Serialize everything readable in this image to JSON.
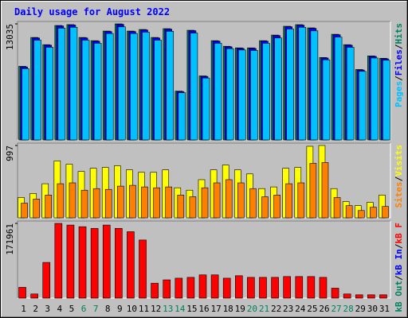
{
  "chart_data": {
    "type": "bar",
    "title": "Daily usage for August 2022",
    "categories": [
      "1",
      "2",
      "3",
      "4",
      "5",
      "6",
      "7",
      "8",
      "9",
      "10",
      "11",
      "12",
      "13",
      "14",
      "15",
      "16",
      "17",
      "18",
      "19",
      "20",
      "21",
      "22",
      "23",
      "24",
      "25",
      "26",
      "27",
      "28",
      "29",
      "30",
      "31"
    ],
    "weekend_indices": [
      5,
      6,
      12,
      13,
      19,
      20,
      26,
      27
    ],
    "weekend_color": "#00805c",
    "legend_separator": "/",
    "panels": [
      {
        "ylim": [
          0,
          13035
        ],
        "yticks": [
          13035
        ],
        "series": [
          {
            "name": "Hits",
            "color": "#00805c",
            "values": [
              8270,
              11507,
              10698,
              12855,
              12950,
              11507,
              11147,
              12226,
              13035,
              12226,
              12406,
              11507,
              12496,
              5484,
              12316,
              7192,
              11147,
              10518,
              10338,
              10338,
              11147,
              11776,
              12765,
              12945,
              12586,
              9259,
              11866,
              10698,
              7911,
              9439,
              9169
            ]
          },
          {
            "name": "Files",
            "color": "#0000ff",
            "values": [
              8200,
              11450,
              10640,
              12800,
              12900,
              11450,
              11090,
              12170,
              12980,
              12170,
              12350,
              11450,
              12440,
              5430,
              12260,
              7130,
              11090,
              10460,
              10280,
              10280,
              11090,
              11720,
              12710,
              12890,
              12530,
              9200,
              11810,
              10640,
              7850,
              9380,
              9110
            ]
          },
          {
            "name": "Pages",
            "color": "#00c0ff",
            "values": [
              8000,
              11200,
              10400,
              12550,
              12650,
              11200,
              10850,
              11950,
              12700,
              11950,
              12100,
              11200,
              12200,
              5300,
              12000,
              6950,
              10850,
              10250,
              10100,
              10050,
              10850,
              11450,
              12450,
              12650,
              12250,
              9000,
              11550,
              10400,
              7700,
              9200,
              8950
            ]
          }
        ]
      },
      {
        "ylim": [
          0,
          997
        ],
        "yticks": [
          997
        ],
        "series": [
          {
            "name": "Visits",
            "color": "#ffff00",
            "values": [
              280,
              336,
              470,
              784,
              739,
              639,
              683,
              694,
              717,
              661,
              627,
              627,
              661,
              414,
              381,
              526,
              661,
              728,
              661,
              605,
              403,
              426,
              683,
              694,
              986,
              997,
              403,
              224,
              168,
              213,
              314
            ]
          },
          {
            "name": "Sites",
            "color": "#ff8000",
            "values": [
              202,
              258,
              314,
              470,
              482,
              381,
              403,
              392,
              437,
              448,
              426,
              414,
              426,
              314,
              291,
              414,
              482,
              526,
              482,
              403,
              291,
              314,
              470,
              482,
              751,
              762,
              280,
              168,
              101,
              146,
              157
            ]
          }
        ]
      },
      {
        "ylim": [
          0,
          171961
        ],
        "yticks": [
          171961
        ],
        "series": [
          {
            "name": "kB F",
            "color": "#ff0000",
            "values": [
              24839,
              9553,
              82159,
              171961,
              168140,
              164318,
              160497,
              168140,
              160497,
              152854,
              133747,
              34392,
              42035,
              45856,
              47767,
              53499,
              53499,
              45856,
              51588,
              47767,
              47767,
              47767,
              49678,
              49678,
              49678,
              47767,
              22928,
              9553,
              7643,
              7643,
              7643
            ]
          },
          {
            "name": "kB In",
            "color": "#0000ff",
            "values": [
              0,
              0,
              0,
              0,
              0,
              0,
              0,
              0,
              0,
              0,
              0,
              0,
              0,
              0,
              0,
              0,
              0,
              0,
              0,
              0,
              0,
              0,
              0,
              0,
              0,
              0,
              0,
              0,
              0,
              0,
              0
            ]
          },
          {
            "name": "kB Out",
            "color": "#00805c",
            "values": [
              0,
              0,
              0,
              0,
              0,
              0,
              0,
              0,
              0,
              0,
              0,
              0,
              0,
              0,
              0,
              0,
              0,
              0,
              0,
              0,
              0,
              0,
              0,
              0,
              0,
              0,
              0,
              0,
              0,
              0,
              0
            ]
          }
        ]
      }
    ]
  }
}
